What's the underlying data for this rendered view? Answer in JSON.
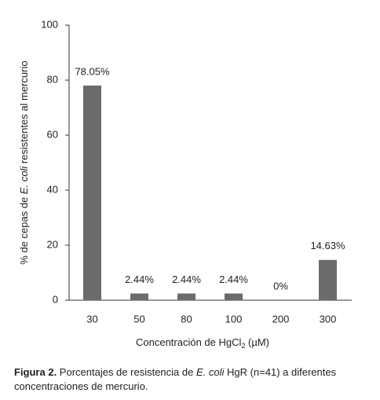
{
  "chart_data": {
    "type": "bar",
    "categories": [
      "30",
      "50",
      "80",
      "100",
      "200",
      "300"
    ],
    "values": [
      78.05,
      2.44,
      2.44,
      2.44,
      0,
      14.63
    ],
    "value_labels": [
      "78.05%",
      "2.44%",
      "2.44%",
      "2.44%",
      "0%",
      "14.63%"
    ],
    "color": "#6b6b6b",
    "ylim": [
      0,
      100
    ],
    "yticks": [
      0,
      20,
      40,
      60,
      80,
      100
    ],
    "y_label": [
      "% de cepas de ",
      "E. coli",
      " resistentes al mercurio"
    ],
    "x_label": [
      "Concentración de HgCl",
      "2",
      " (µM)"
    ]
  },
  "caption": [
    "Figura 2.",
    " Porcentajes de resistencia de ",
    "E. coli",
    " HgR (n=41) a diferentes",
    "concentraciones de mercurio."
  ]
}
